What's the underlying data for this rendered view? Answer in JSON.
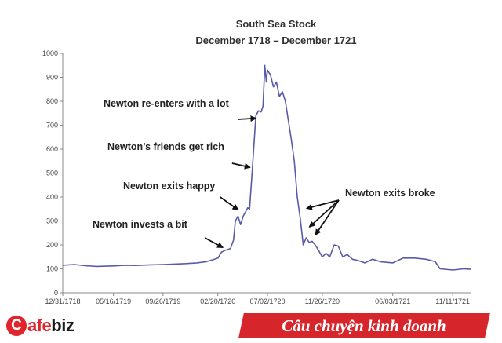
{
  "chart_data": {
    "type": "line",
    "title": "South Sea Stock",
    "subtitle": "December 1718 – December 1721",
    "xlabel": "",
    "ylabel": "",
    "ylim": [
      0,
      1000
    ],
    "yticks": [
      0,
      100,
      200,
      300,
      400,
      500,
      600,
      700,
      800,
      900,
      1000
    ],
    "xticks": [
      "12/31/1718",
      "05/16/1719",
      "09/26/1719",
      "02/20/1720",
      "07/02/1720",
      "11/26/1720",
      "06/03/1721",
      "11/11/1721"
    ],
    "grid": false,
    "series": [
      {
        "name": "",
        "color": "#5a5aa8",
        "points": [
          [
            "12/31/1718",
            115
          ],
          [
            "01/31/1719",
            118
          ],
          [
            "03/01/1719",
            113
          ],
          [
            "04/01/1719",
            110
          ],
          [
            "05/16/1719",
            112
          ],
          [
            "06/15/1719",
            115
          ],
          [
            "07/15/1719",
            114
          ],
          [
            "08/15/1719",
            116
          ],
          [
            "09/26/1719",
            118
          ],
          [
            "10/26/1719",
            120
          ],
          [
            "11/26/1719",
            122
          ],
          [
            "12/26/1719",
            125
          ],
          [
            "01/20/1720",
            130
          ],
          [
            "02/05/1720",
            137
          ],
          [
            "02/20/1720",
            145
          ],
          [
            "03/01/1720",
            170
          ],
          [
            "03/12/1720",
            178
          ],
          [
            "03/25/1720",
            185
          ],
          [
            "04/02/1720",
            220
          ],
          [
            "04/07/1720",
            300
          ],
          [
            "04/14/1720",
            320
          ],
          [
            "04/21/1720",
            285
          ],
          [
            "04/28/1720",
            320
          ],
          [
            "05/05/1720",
            340
          ],
          [
            "05/10/1720",
            355
          ],
          [
            "05/15/1720",
            350
          ],
          [
            "05/24/1720",
            550
          ],
          [
            "06/01/1720",
            740
          ],
          [
            "06/08/1720",
            760
          ],
          [
            "06/15/1720",
            755
          ],
          [
            "06/20/1720",
            780
          ],
          [
            "06/25/1720",
            950
          ],
          [
            "06/29/1720",
            880
          ],
          [
            "07/02/1720",
            930
          ],
          [
            "07/10/1720",
            910
          ],
          [
            "07/18/1720",
            860
          ],
          [
            "07/26/1720",
            880
          ],
          [
            "08/03/1720",
            820
          ],
          [
            "08/11/1720",
            840
          ],
          [
            "08/19/1720",
            800
          ],
          [
            "08/27/1720",
            720
          ],
          [
            "09/04/1720",
            640
          ],
          [
            "09/12/1720",
            550
          ],
          [
            "09/20/1720",
            400
          ],
          [
            "09/28/1720",
            310
          ],
          [
            "10/06/1720",
            200
          ],
          [
            "10/14/1720",
            230
          ],
          [
            "10/22/1720",
            210
          ],
          [
            "10/30/1720",
            215
          ],
          [
            "11/07/1720",
            200
          ],
          [
            "11/15/1720",
            180
          ],
          [
            "11/26/1720",
            150
          ],
          [
            "12/06/1720",
            165
          ],
          [
            "12/16/1720",
            150
          ],
          [
            "12/28/1720",
            200
          ],
          [
            "01/08/1721",
            195
          ],
          [
            "01/20/1721",
            150
          ],
          [
            "02/01/1721",
            160
          ],
          [
            "02/15/1721",
            140
          ],
          [
            "03/01/1721",
            135
          ],
          [
            "03/20/1721",
            125
          ],
          [
            "04/10/1721",
            140
          ],
          [
            "05/01/1721",
            130
          ],
          [
            "06/03/1721",
            125
          ],
          [
            "07/01/1721",
            145
          ],
          [
            "08/01/1721",
            145
          ],
          [
            "09/01/1721",
            140
          ],
          [
            "09/25/1721",
            130
          ],
          [
            "10/08/1721",
            100
          ],
          [
            "11/11/1721",
            95
          ],
          [
            "12/10/1721",
            100
          ],
          [
            "12/31/1721",
            98
          ]
        ]
      }
    ],
    "annotations": [
      {
        "text": "Newton re-enters with a lot",
        "date": "06/12/1720",
        "y": 730
      },
      {
        "text": "Newton’s friends get rich",
        "date": "05/27/1720",
        "y": 520
      },
      {
        "text": "Newton exits happy",
        "date": "04/25/1720",
        "y": 335
      },
      {
        "text": "Newton invests a bit",
        "date": "03/15/1720",
        "y": 180
      },
      {
        "text": "Newton exits broke",
        "targets": [
          [
            "09/26/1720",
            345
          ],
          [
            "10/05/1720",
            250
          ],
          [
            "10/25/1720",
            210
          ]
        ]
      }
    ]
  },
  "footer": {
    "brand_c": "C",
    "brand_afe": "afe",
    "brand_biz": "biz",
    "banner_text": "Câu chuyện kinh doanh",
    "brand_color": "#e0262c",
    "banner_color": "#d7262b"
  }
}
